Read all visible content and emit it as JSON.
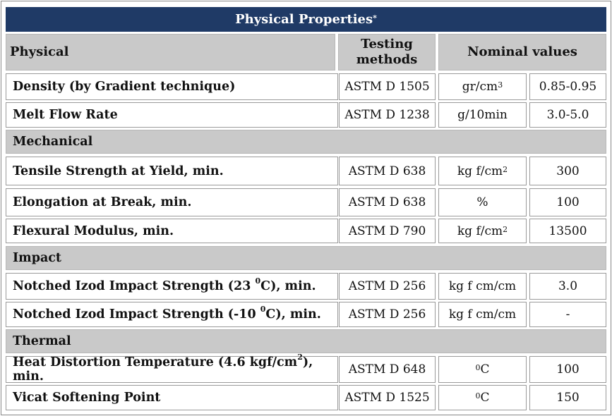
{
  "title": "Physical Properties",
  "title_mark": "*",
  "header": {
    "col1": "Physical",
    "col2_line1": "Testing",
    "col2_line2": "methods",
    "col3": "Nominal values"
  },
  "rows_physical": [
    {
      "property": "Density (by Gradient technique)",
      "method": "ASTM D 1505",
      "unit_base": "gr/cm",
      "unit_sup": "3",
      "value": "0.85-0.95"
    },
    {
      "property": "Melt Flow Rate",
      "method": "ASTM D 1238",
      "unit_base": "g/10min",
      "unit_sup": "",
      "value": "3.0-5.0"
    }
  ],
  "section_mechanical": "Mechanical",
  "rows_mechanical": [
    {
      "property": "Tensile Strength at Yield, min.",
      "method": "ASTM D 638",
      "unit_base": "kg f/cm",
      "unit_sup": "2",
      "value": "300"
    },
    {
      "property": "Elongation at Break, min.",
      "method": "ASTM D 638",
      "unit_base": "%",
      "unit_sup": "",
      "value": "100"
    },
    {
      "property": "Flexural Modulus, min.",
      "method": "ASTM D 790",
      "unit_base": "kg f/cm",
      "unit_sup": "2",
      "value": "13500"
    }
  ],
  "section_impact": "Impact",
  "rows_impact": [
    {
      "prop_pre": "Notched Izod Impact Strength (23 ",
      "prop_sup": "0",
      "prop_post": "C), min.",
      "method": "ASTM D 256",
      "unit": "kg f cm/cm",
      "value": "3.0"
    },
    {
      "prop_pre": "Notched Izod Impact Strength (-10 ",
      "prop_sup": "0",
      "prop_post": "C), min.",
      "method": "ASTM D 256",
      "unit": "kg f cm/cm",
      "value": "-"
    }
  ],
  "section_thermal": "Thermal",
  "rows_thermal": [
    {
      "prop_pre": "Heat Distortion Temperature (4.6 kgf/cm",
      "prop_sup": "2",
      "prop_post": "), min.",
      "method": "ASTM D 648",
      "unit_sup": "0",
      "unit_post": "C",
      "value": "100"
    },
    {
      "prop_pre": "Vicat Softening Point",
      "prop_sup": "",
      "prop_post": "",
      "method": "ASTM D 1525",
      "unit_sup": "0",
      "unit_post": "C",
      "value": "150"
    }
  ]
}
